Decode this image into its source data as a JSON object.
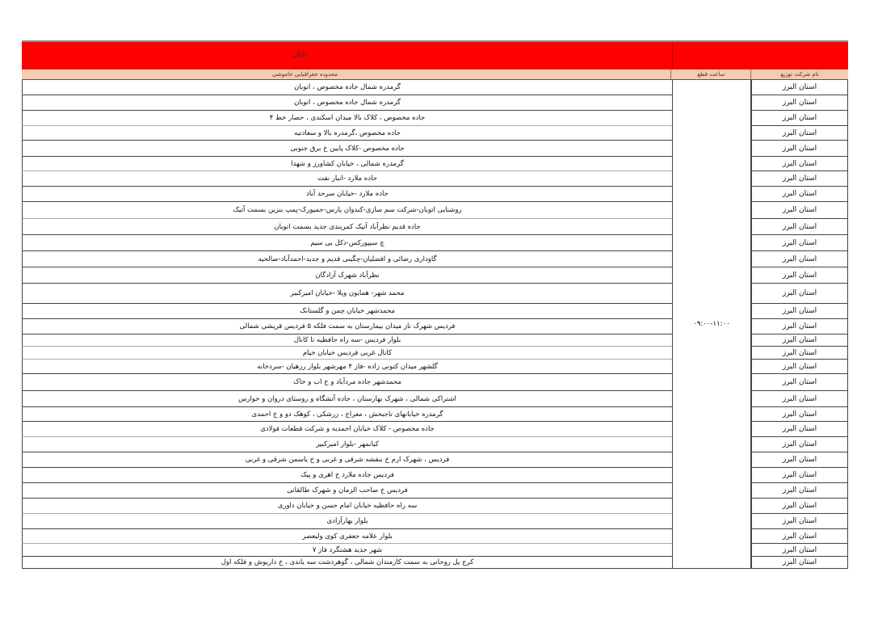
{
  "header": {
    "category": "خانگی",
    "col_area": "محدوده جغرافیایی خاموشی",
    "col_time": "ساعت قطع",
    "col_company": "نام شرکت توزیع"
  },
  "time": "۰۹:۰۰-۱۱:۰۰",
  "rows": [
    {
      "province": "استان البرز",
      "area": "گرمدره شمال جاده مخصوص ، اتوبان"
    },
    {
      "province": "استان البرز",
      "area": "گرمدره شمال جاده مخصوص ، اتوبان"
    },
    {
      "province": "استان البرز",
      "area": "جاده مخصوص ، کلاک بالا میدان اسکندی ، حصار خط ۴"
    },
    {
      "province": "استان البرز",
      "area": "جاده مخصوص ،گرمدره بالا و سعادتیه"
    },
    {
      "province": "استان البرز",
      "area": "جاده مخصوص -کلاک پایین خ برق جنوبی"
    },
    {
      "province": "استان البرز",
      "area": "گرمدره شمالی ، خیابان کشاورز و شهدا"
    },
    {
      "province": "استان البرز",
      "area": "جاده ملارد -انبار نفت"
    },
    {
      "province": "استان البرز",
      "area": "جاده ملارد -خیابان سرحد آباد"
    },
    {
      "province": "استان البرز",
      "area": "روشنایی اتوبان-شرکت سم سازی-کندوان پارس-جمیورک-پمپ بنزین بسمت آتیک"
    },
    {
      "province": "استان البرز",
      "area": "جاده قدیم نظرآباد آتیک کمربندی جدید بسمت اتوبان"
    },
    {
      "province": "استان البرز",
      "area": "چ سیپورکس-دکل بی سیم"
    },
    {
      "province": "استان البرز",
      "area": "گاوداری رضائی و افضلیان-چگینی قدیم و جدید-احمدآباد-صالحیه"
    },
    {
      "province": "استان البرز",
      "area": "نظرآباد شهرک آزادگان"
    },
    {
      "province": "استان البرز",
      "area": "محمد شهر- همایون ویلا -خیابان امیرکبیر"
    },
    {
      "province": "استان البرز",
      "area": "محمدشهر خیابان چمن و گلستانک"
    },
    {
      "province": "استان البرز",
      "area": "فردیس شهرک ناز میدان بیمارستان به سمت فلکه ۵ فردیس   قریشی شمالی"
    },
    {
      "province": "استان البرز",
      "area": "بلوار فردیس -سه راه حافظیه تا کانال"
    },
    {
      "province": "استان البرز",
      "area": "کانال غربی فردیس خیابان خیام"
    },
    {
      "province": "استان البرز",
      "area": "گلشهر میدان کتونی زاده -فاز ۴ مهرشهر بلوار رزهیان -سردخانه"
    },
    {
      "province": "استان البرز",
      "area": "محمدشهر جاده مردآباد و خ اب و خاک"
    },
    {
      "province": "استان البرز",
      "area": "اشتراکی شمالی ، شهرک بهارستان ، جاده آتشگاه و روستای دروان و خوارس"
    },
    {
      "province": "استان البرز",
      "area": "گرمدره خیابانهای تاجبخش ، معراج ، زرشکی ، کوهک دو  و خ احمدی"
    },
    {
      "province": "استان البرز",
      "area": "جاده مخصوص - کلاک خیابان احمدیه و شرکت قطعات فولادی"
    },
    {
      "province": "استان البرز",
      "area": "کیانمهر -بلوار امیرکبیر"
    },
    {
      "province": "استان البرز",
      "area": "فردیس ، شهرک ارم خ بنفشه شرقی و غربی و خ یاسمن شرقی و غربی"
    },
    {
      "province": "استان البرز",
      "area": "فردیس جاده ملارد خ اهری و پیک"
    },
    {
      "province": "استان البرز",
      "area": "فردیس خ صاحب الزمان و شهرک طالقانی"
    },
    {
      "province": "استان البرز",
      "area": "سه راه حافظیه خیابان امام حسن و خیابان داوری"
    },
    {
      "province": "استان البرز",
      "area": "بلوار بهارآزادی"
    },
    {
      "province": "استان البرز",
      "area": "بلوار علامه جعفری کوی ولیعصر"
    },
    {
      "province": "استان البرز",
      "area": "شهر جدید هشتگرد فاز ۷"
    },
    {
      "province": "استان البرز",
      "area": "کرج پل روحانی به سمت کارمندان شمالی ، گوهردشت سه یاندی ، خ داریوش و فلکه اول"
    }
  ]
}
